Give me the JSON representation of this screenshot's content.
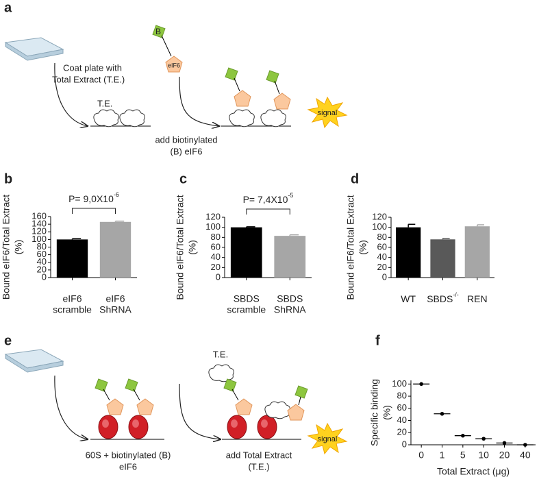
{
  "panel_labels": [
    "a",
    "b",
    "c",
    "d",
    "e",
    "f"
  ],
  "diagram_a": {
    "step1": [
      "Coat plate with",
      "Total Extract (T.E.)"
    ],
    "extract_label": "T.E.",
    "biotin_label": "B",
    "protein_label": "eIF6",
    "step2": [
      "add biotinylated",
      "(B) eIF6"
    ],
    "signal": "signal"
  },
  "diagram_e": {
    "step1": [
      "60S + biotinylated (B)",
      "eIF6"
    ],
    "extract_label": "T.E.",
    "step2": [
      "add Total Extract",
      "(T.E.)"
    ],
    "signal": "signal"
  },
  "chart_data": [
    {
      "type": "bar",
      "ylabel": "Bound eIF6/Total Extract",
      "ylabel_unit": "(%)",
      "annotation": {
        "text": "P= 9,0X10",
        "exponent": "-6"
      },
      "categories": [
        [
          "eIF6",
          "scramble"
        ],
        [
          "eIF6",
          "ShRNA"
        ]
      ],
      "values": [
        100,
        146
      ],
      "errors": [
        2,
        2
      ],
      "colors": [
        "#000000",
        "#a6a6a6"
      ],
      "ylim": [
        0,
        160
      ],
      "yticks": [
        0,
        20,
        40,
        60,
        80,
        100,
        120,
        140,
        160
      ]
    },
    {
      "type": "bar",
      "ylabel": "Bound eIF6/Total Extract",
      "ylabel_unit": "(%)",
      "annotation": {
        "text": "P= 7,4X10",
        "exponent": "-5"
      },
      "categories": [
        [
          "SBDS",
          "scramble"
        ],
        [
          "SBDS",
          "ShRNA"
        ]
      ],
      "values": [
        100,
        83
      ],
      "errors": [
        1,
        2
      ],
      "colors": [
        "#000000",
        "#a6a6a6"
      ],
      "ylim": [
        0,
        120
      ],
      "yticks": [
        0,
        20,
        40,
        60,
        80,
        100,
        120
      ]
    },
    {
      "type": "bar",
      "ylabel": "Bound eIF6/Total Extract",
      "ylabel_unit": "(%)",
      "categories": [
        {
          "text": "WT"
        },
        {
          "text": "SBDS",
          "sup": "-/-"
        },
        {
          "text": "REN"
        }
      ],
      "values": [
        100,
        76,
        102
      ],
      "errors": [
        6,
        2,
        3
      ],
      "colors": [
        "#000000",
        "#595959",
        "#a6a6a6"
      ],
      "ylim": [
        0,
        120
      ],
      "yticks": [
        0,
        20,
        40,
        60,
        80,
        100,
        120
      ]
    },
    {
      "type": "scatter",
      "ylabel": "Specific binding",
      "ylabel_unit": "(%)",
      "xlabel": "Total Extract (μg)",
      "categories": [
        "0",
        "1",
        "5",
        "10",
        "20",
        "40"
      ],
      "values": [
        100,
        51,
        15,
        10,
        3,
        0
      ],
      "color": "#000000",
      "ylim": [
        0,
        106
      ],
      "yticks": [
        0,
        20,
        40,
        60,
        80,
        100
      ]
    }
  ]
}
